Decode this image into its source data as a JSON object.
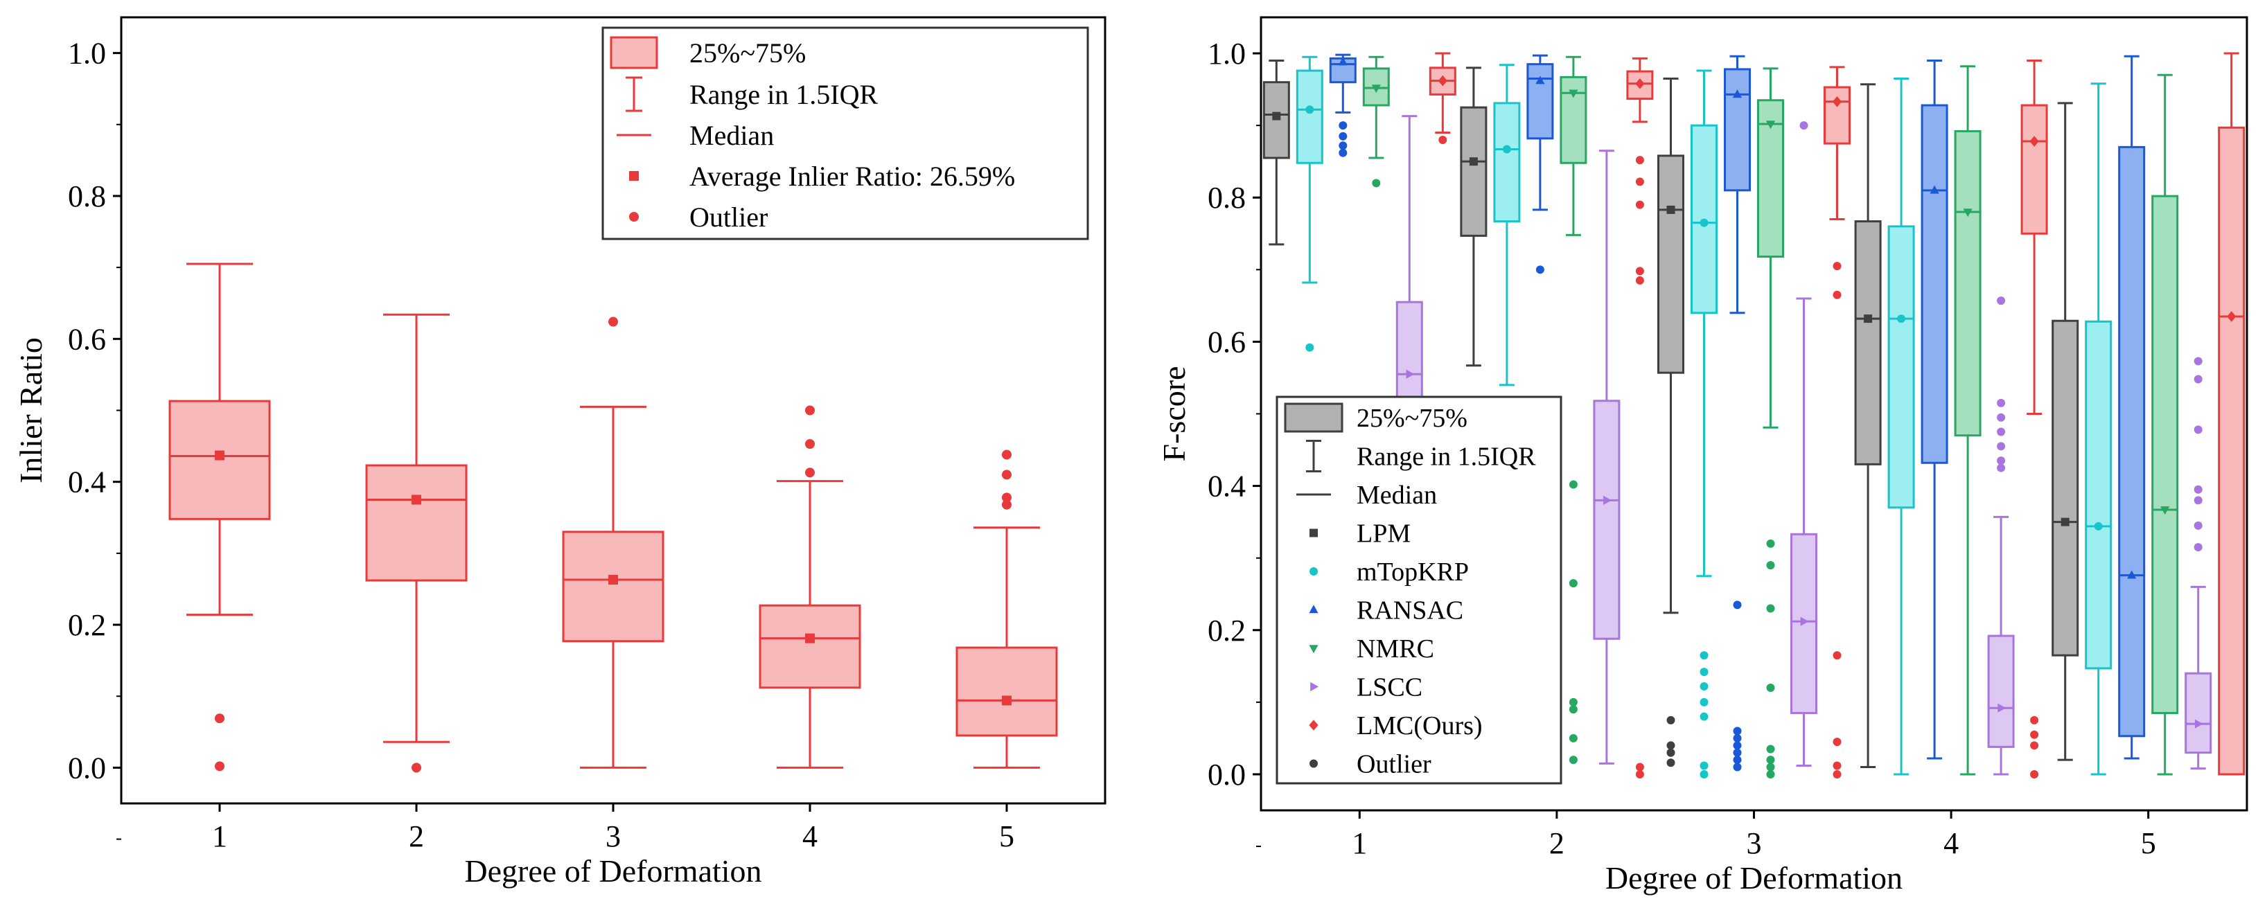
{
  "figure": {
    "background": "#ffffff"
  },
  "chart_data": [
    {
      "type": "box",
      "xlabel": "Degree of Deformation",
      "ylabel": "Inlier Ratio",
      "categories": [
        "1",
        "2",
        "3",
        "4",
        "5"
      ],
      "ylim": [
        -0.05,
        1.05
      ],
      "yticks": [
        "0.0",
        "0.2",
        "0.4",
        "0.6",
        "0.8",
        "1.0"
      ],
      "grid": false,
      "color": "#e8393b",
      "fill": "#f7b9b9",
      "series": [
        {
          "boxes": [
            {
              "whislo": 0.214,
              "q1": 0.348,
              "med": 0.436,
              "q3": 0.513,
              "whishi": 0.705,
              "mean": 0.437,
              "fliers": [
                0.002,
                0.069
              ]
            },
            {
              "whislo": 0.036,
              "q1": 0.262,
              "med": 0.375,
              "q3": 0.423,
              "whishi": 0.634,
              "mean": 0.375,
              "fliers": [
                0.0
              ]
            },
            {
              "whislo": 0.0,
              "q1": 0.177,
              "med": 0.263,
              "q3": 0.33,
              "whishi": 0.505,
              "mean": 0.263,
              "fliers": [
                0.624
              ]
            },
            {
              "whislo": 0.0,
              "q1": 0.112,
              "med": 0.181,
              "q3": 0.227,
              "whishi": 0.401,
              "mean": 0.181,
              "fliers": [
                0.413,
                0.453,
                0.5
              ]
            },
            {
              "whislo": 0.0,
              "q1": 0.045,
              "med": 0.094,
              "q3": 0.168,
              "whishi": 0.336,
              "mean": 0.094,
              "fliers": [
                0.368,
                0.378,
                0.41,
                0.438
              ]
            }
          ]
        }
      ],
      "legend": {
        "placement": "top-right",
        "entries": [
          "25%~75%",
          "Range in 1.5IQR",
          "Median",
          "Average Inlier Ratio: 26.59%",
          "Outlier"
        ]
      }
    },
    {
      "type": "box",
      "xlabel": "Degree of Deformation",
      "ylabel": "F-score",
      "categories": [
        "1",
        "2",
        "3",
        "4",
        "5"
      ],
      "ylim": [
        -0.05,
        1.05
      ],
      "yticks": [
        "0.0",
        "0.2",
        "0.4",
        "0.6",
        "0.8",
        "1.0"
      ],
      "grid": false,
      "series": [
        {
          "name": "LPM",
          "color": "#3f3f3f",
          "fill": "#b2b2b2",
          "marker": "square",
          "boxes": [
            {
              "whislo": 0.735,
              "q1": 0.855,
              "med": 0.915,
              "q3": 0.96,
              "whishi": 0.99,
              "mean": 0.913,
              "fliers": []
            },
            {
              "whislo": 0.567,
              "q1": 0.747,
              "med": 0.85,
              "q3": 0.925,
              "whishi": 0.98,
              "mean": 0.85,
              "fliers": []
            },
            {
              "whislo": 0.224,
              "q1": 0.557,
              "med": 0.783,
              "q3": 0.858,
              "whishi": 0.965,
              "mean": 0.783,
              "fliers": [
                0.016,
                0.03,
                0.04,
                0.075
              ]
            },
            {
              "whislo": 0.01,
              "q1": 0.43,
              "med": 0.632,
              "q3": 0.767,
              "whishi": 0.957,
              "mean": 0.632,
              "fliers": []
            },
            {
              "whislo": 0.02,
              "q1": 0.165,
              "med": 0.35,
              "q3": 0.629,
              "whishi": 0.931,
              "mean": 0.35,
              "fliers": []
            }
          ]
        },
        {
          "name": "mTopKRP",
          "color": "#17c5c9",
          "fill": "#9ceef0",
          "marker": "circle",
          "boxes": [
            {
              "whislo": 0.682,
              "q1": 0.848,
              "med": 0.922,
              "q3": 0.976,
              "whishi": 0.995,
              "mean": 0.922,
              "fliers": [
                0.592
              ]
            },
            {
              "whislo": 0.54,
              "q1": 0.767,
              "med": 0.867,
              "q3": 0.931,
              "whishi": 0.984,
              "mean": 0.867,
              "fliers": []
            },
            {
              "whislo": 0.275,
              "q1": 0.64,
              "med": 0.765,
              "q3": 0.9,
              "whishi": 0.976,
              "mean": 0.765,
              "fliers": [
                0.0,
                0.012,
                0.08,
                0.1,
                0.122,
                0.142,
                0.165
              ]
            },
            {
              "whislo": 0.0,
              "q1": 0.37,
              "med": 0.632,
              "q3": 0.76,
              "whishi": 0.965,
              "mean": 0.632,
              "fliers": []
            },
            {
              "whislo": 0.0,
              "q1": 0.147,
              "med": 0.344,
              "q3": 0.628,
              "whishi": 0.958,
              "mean": 0.344,
              "fliers": []
            }
          ]
        },
        {
          "name": "RANSAC",
          "color": "#1a58d6",
          "fill": "#8db0f3",
          "marker": "triangle-up",
          "boxes": [
            {
              "whislo": 0.918,
              "q1": 0.96,
              "med": 0.985,
              "q3": 0.993,
              "whishi": 0.998,
              "mean": 0.988,
              "fliers": [
                0.862,
                0.872,
                0.885,
                0.9
              ]
            },
            {
              "whislo": 0.783,
              "q1": 0.882,
              "med": 0.965,
              "q3": 0.985,
              "whishi": 0.997,
              "mean": 0.962,
              "fliers": [
                0.7
              ]
            },
            {
              "whislo": 0.64,
              "q1": 0.81,
              "med": 0.943,
              "q3": 0.978,
              "whishi": 0.996,
              "mean": 0.943,
              "fliers": [
                0.01,
                0.02,
                0.03,
                0.04,
                0.05,
                0.06,
                0.235
              ]
            },
            {
              "whislo": 0.022,
              "q1": 0.432,
              "med": 0.81,
              "q3": 0.928,
              "whishi": 0.99,
              "mean": 0.81,
              "fliers": []
            },
            {
              "whislo": 0.022,
              "q1": 0.053,
              "med": 0.276,
              "q3": 0.87,
              "whishi": 0.996,
              "mean": 0.276,
              "fliers": []
            }
          ]
        },
        {
          "name": "NMRC",
          "color": "#26a862",
          "fill": "#a4e0bd",
          "marker": "triangle-down",
          "boxes": [
            {
              "whislo": 0.855,
              "q1": 0.928,
              "med": 0.952,
              "q3": 0.979,
              "whishi": 0.995,
              "mean": 0.952,
              "fliers": [
                0.82
              ]
            },
            {
              "whislo": 0.748,
              "q1": 0.848,
              "med": 0.945,
              "q3": 0.967,
              "whishi": 0.995,
              "mean": 0.945,
              "fliers": [
                0.02,
                0.05,
                0.09,
                0.1,
                0.265,
                0.402
              ]
            },
            {
              "whislo": 0.481,
              "q1": 0.718,
              "med": 0.902,
              "q3": 0.935,
              "whishi": 0.979,
              "mean": 0.902,
              "fliers": [
                0.0,
                0.01,
                0.02,
                0.035,
                0.12,
                0.23,
                0.29,
                0.32
              ]
            },
            {
              "whislo": 0.0,
              "q1": 0.47,
              "med": 0.78,
              "q3": 0.892,
              "whishi": 0.982,
              "mean": 0.78,
              "fliers": []
            },
            {
              "whislo": 0.0,
              "q1": 0.085,
              "med": 0.367,
              "q3": 0.802,
              "whishi": 0.97,
              "mean": 0.367,
              "fliers": []
            }
          ]
        },
        {
          "name": "LSCC",
          "color": "#a874e0",
          "fill": "#ddc8f3",
          "marker": "triangle-right",
          "boxes": [
            {
              "whislo": 0.0,
              "q1": 0.44,
              "med": 0.555,
              "q3": 0.655,
              "whishi": 0.913,
              "mean": 0.555,
              "fliers": []
            },
            {
              "whislo": 0.015,
              "q1": 0.188,
              "med": 0.38,
              "q3": 0.518,
              "whishi": 0.865,
              "mean": 0.38,
              "fliers": []
            },
            {
              "whislo": 0.012,
              "q1": 0.085,
              "med": 0.212,
              "q3": 0.333,
              "whishi": 0.66,
              "mean": 0.212,
              "fliers": [
                0.9
              ]
            },
            {
              "whislo": 0.0,
              "q1": 0.038,
              "med": 0.092,
              "q3": 0.192,
              "whishi": 0.357,
              "mean": 0.092,
              "fliers": [
                0.425,
                0.435,
                0.455,
                0.475,
                0.495,
                0.515,
                0.657
              ]
            },
            {
              "whislo": 0.008,
              "q1": 0.03,
              "med": 0.07,
              "q3": 0.14,
              "whishi": 0.26,
              "mean": 0.07,
              "fliers": [
                0.315,
                0.345,
                0.38,
                0.395,
                0.478,
                0.548,
                0.573
              ]
            }
          ]
        },
        {
          "name": "LMC(Ours)",
          "color": "#e8393b",
          "fill": "#f7b9b9",
          "marker": "diamond",
          "boxes": [
            {
              "whislo": 0.89,
              "q1": 0.943,
              "med": 0.962,
              "q3": 0.98,
              "whishi": 1.0,
              "mean": 0.962,
              "fliers": [
                0.88
              ]
            },
            {
              "whislo": 0.905,
              "q1": 0.937,
              "med": 0.958,
              "q3": 0.975,
              "whishi": 0.993,
              "mean": 0.958,
              "fliers": [
                0.0,
                0.01,
                0.685,
                0.698,
                0.79,
                0.822,
                0.852
              ]
            },
            {
              "whislo": 0.77,
              "q1": 0.875,
              "med": 0.933,
              "q3": 0.953,
              "whishi": 0.981,
              "mean": 0.933,
              "fliers": [
                0.0,
                0.012,
                0.045,
                0.165,
                0.665,
                0.705
              ]
            },
            {
              "whislo": 0.5,
              "q1": 0.75,
              "med": 0.878,
              "q3": 0.928,
              "whishi": 0.99,
              "mean": 0.878,
              "fliers": [
                0.0,
                0.04,
                0.055,
                0.075
              ]
            },
            {
              "whislo": 0.0,
              "q1": 0.0,
              "med": 0.635,
              "q3": 0.897,
              "whishi": 1.0,
              "mean": 0.635,
              "fliers": []
            }
          ]
        }
      ],
      "legend": {
        "placement": "bottom-left",
        "entries": [
          "25%~75%",
          "Range in 1.5IQR",
          "Median",
          "LPM",
          "mTopKRP",
          "RANSAC",
          "NMRC",
          "LSCC",
          "LMC(Ours)",
          "Outlier"
        ]
      }
    }
  ]
}
